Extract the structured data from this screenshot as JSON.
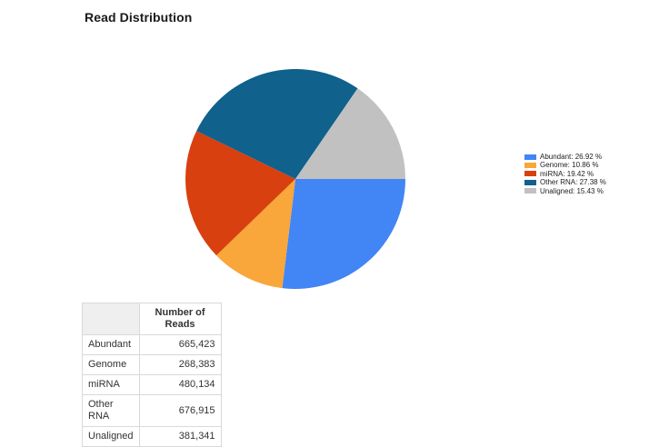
{
  "page": {
    "title": "Read Distribution"
  },
  "chart_data": {
    "type": "pie",
    "title": "Read Distribution",
    "categories": [
      "Abundant",
      "Genome",
      "miRNA",
      "Other RNA",
      "Unaligned"
    ],
    "values": [
      665423,
      268383,
      480134,
      676915,
      381341
    ],
    "percent_labels": [
      "26.92 %",
      "10.86 %",
      "19.42 %",
      "27.38 %",
      "15.43 %"
    ],
    "colors": [
      "#4285f4",
      "#f9a63a",
      "#d8400f",
      "#10618c",
      "#c1c1c1"
    ],
    "start_angle_deg": 0,
    "direction": "clockwise",
    "legend_position": "right",
    "legend": [
      {
        "label": "Abundant: 26.92 %"
      },
      {
        "label": "Genome: 10.86 %"
      },
      {
        "label": "miRNA: 19.42 %"
      },
      {
        "label": "Other RNA: 27.38 %"
      },
      {
        "label": "Unaligned: 15.43 %"
      }
    ]
  },
  "table": {
    "header": [
      "",
      "Number of Reads"
    ],
    "rows": [
      {
        "label": "Abundant",
        "value": "665,423"
      },
      {
        "label": "Genome",
        "value": "268,383"
      },
      {
        "label": "miRNA",
        "value": "480,134"
      },
      {
        "label": "Other RNA",
        "value": "676,915"
      },
      {
        "label": "Unaligned",
        "value": "381,341"
      }
    ]
  }
}
